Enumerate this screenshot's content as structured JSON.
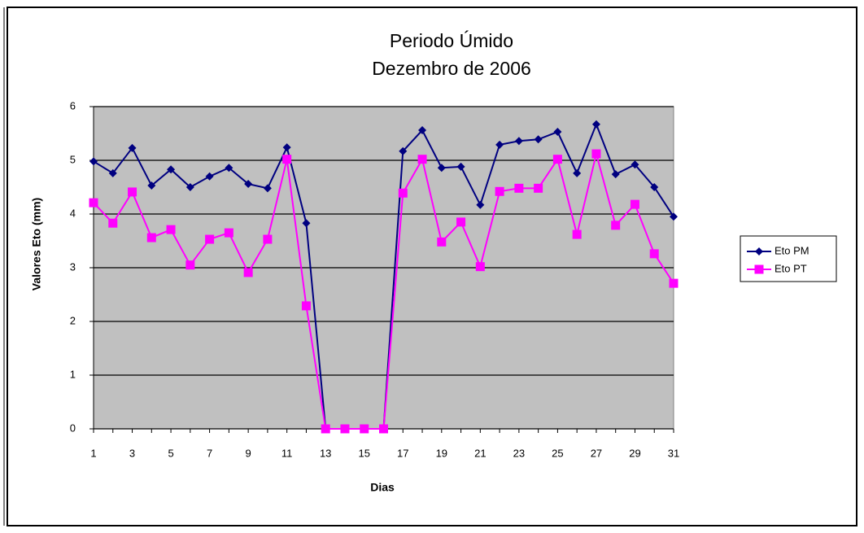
{
  "chart_data": {
    "type": "line",
    "title": "Periodo Úmido",
    "subtitle": "Dezembro de 2006",
    "x_label": "Dias",
    "y_label": "Valores Eto (mm)",
    "categories": [
      1,
      null,
      3,
      null,
      5,
      null,
      7,
      null,
      9,
      null,
      11,
      null,
      13,
      null,
      15,
      null,
      17,
      null,
      19,
      null,
      21,
      null,
      23,
      null,
      25,
      null,
      27,
      null,
      29,
      null,
      31
    ],
    "series": [
      {
        "name": "Eto PM",
        "color": "#000080",
        "marker": "diamond",
        "values": [
          4.98,
          4.76,
          5.23,
          4.53,
          4.83,
          4.5,
          4.7,
          4.86,
          4.56,
          4.48,
          5.24,
          3.83,
          0,
          0,
          0,
          0,
          5.17,
          5.56,
          4.86,
          4.88,
          4.17,
          5.29,
          5.36,
          5.39,
          5.53,
          4.76,
          5.67,
          4.74,
          4.92,
          4.5,
          3.95
        ]
      },
      {
        "name": "Eto PT",
        "color": "#ff00ff",
        "marker": "square",
        "values": [
          4.21,
          3.83,
          4.41,
          3.56,
          3.71,
          3.05,
          3.53,
          3.65,
          2.91,
          3.53,
          5.02,
          2.29,
          0,
          0,
          0,
          0,
          4.39,
          5.02,
          3.48,
          3.85,
          3.02,
          4.42,
          4.48,
          4.48,
          5.02,
          3.62,
          5.12,
          3.79,
          4.18,
          3.26,
          2.71
        ]
      }
    ],
    "ylim": [
      0,
      6
    ],
    "yticks": [
      0,
      1,
      2,
      3,
      4,
      5,
      6
    ],
    "grid": true,
    "legend": "right",
    "plot_background": "#c0c0c0"
  }
}
